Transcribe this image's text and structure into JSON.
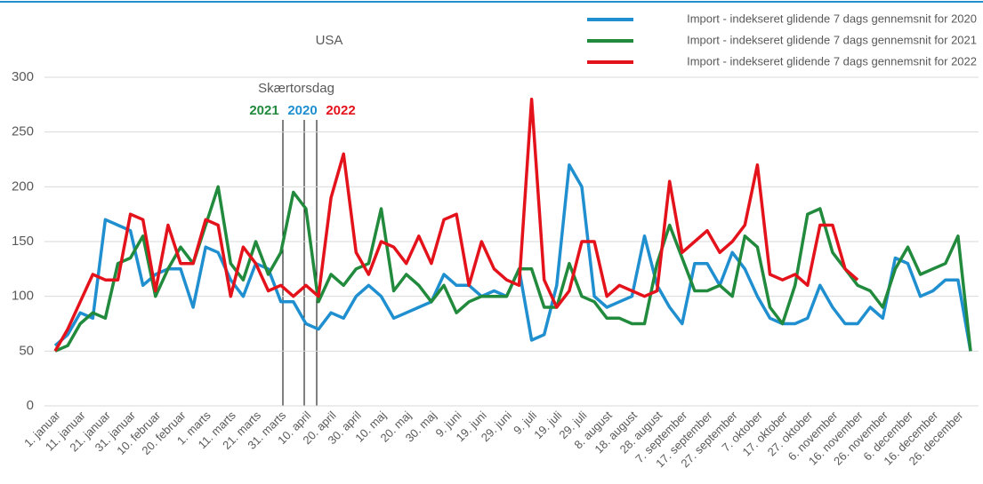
{
  "chart_data": {
    "type": "line",
    "title": "USA",
    "categories": [
      "1. januar",
      null,
      "11. januar",
      null,
      "21. januar",
      null,
      "31. januar",
      null,
      "10. februar",
      null,
      "20. februar",
      null,
      "1. marts",
      null,
      "11. marts",
      null,
      "21. marts",
      null,
      "31. marts",
      null,
      "10. april",
      null,
      "20. april",
      null,
      "30. april",
      null,
      "10. maj",
      null,
      "20. maj",
      null,
      "30. maj",
      null,
      "9. juni",
      null,
      "19. juni",
      null,
      "29. juni",
      null,
      "9. juli",
      null,
      "19. juli",
      null,
      "29. juli",
      null,
      "8. august",
      null,
      "18. august",
      null,
      "28. august",
      null,
      "7. september",
      null,
      "17. september",
      null,
      "27. september",
      null,
      "7. oktober",
      null,
      "17. oktober",
      null,
      "27. oktober",
      null,
      "6. november",
      null,
      "16. november",
      null,
      "26. november",
      null,
      "6. december",
      null,
      "16. december",
      null,
      "26. december",
      null
    ],
    "series": [
      {
        "name": "Import - indekseret glidende 7 dags gennemsnit for 2020",
        "color": "#1f8fd0",
        "values": [
          55,
          65,
          85,
          80,
          170,
          165,
          160,
          110,
          120,
          125,
          125,
          90,
          145,
          140,
          115,
          100,
          130,
          125,
          95,
          95,
          75,
          70,
          85,
          80,
          100,
          110,
          100,
          80,
          85,
          90,
          95,
          120,
          110,
          110,
          100,
          105,
          100,
          125,
          60,
          65,
          110,
          220,
          200,
          100,
          90,
          95,
          100,
          155,
          110,
          90,
          75,
          130,
          130,
          110,
          140,
          125,
          100,
          80,
          75,
          75,
          80,
          110,
          90,
          75,
          75,
          90,
          80,
          135,
          130,
          100,
          105,
          115,
          115,
          50
        ]
      },
      {
        "name": "Import - indekseret glidende 7 dags gennemsnit for 2021",
        "color": "#218a3c",
        "values": [
          50,
          55,
          75,
          85,
          80,
          130,
          135,
          155,
          100,
          125,
          145,
          130,
          165,
          200,
          130,
          115,
          150,
          120,
          140,
          195,
          180,
          95,
          120,
          110,
          125,
          130,
          180,
          105,
          120,
          110,
          95,
          110,
          85,
          95,
          100,
          100,
          100,
          125,
          125,
          90,
          90,
          130,
          100,
          95,
          80,
          80,
          75,
          75,
          130,
          165,
          135,
          105,
          105,
          110,
          100,
          155,
          145,
          90,
          75,
          110,
          175,
          180,
          140,
          125,
          110,
          105,
          90,
          125,
          145,
          120,
          125,
          130,
          155,
          50
        ]
      },
      {
        "name": "Import - indekseret glidende 7 dags gennemsnit for 2022",
        "color": "#e3121b",
        "values": [
          50,
          70,
          95,
          120,
          115,
          115,
          175,
          170,
          105,
          165,
          130,
          130,
          170,
          165,
          100,
          145,
          130,
          105,
          110,
          100,
          110,
          100,
          190,
          230,
          140,
          120,
          150,
          145,
          130,
          155,
          130,
          170,
          175,
          110,
          150,
          125,
          115,
          110,
          280,
          115,
          90,
          105,
          150,
          150,
          100,
          110,
          105,
          100,
          105,
          205,
          140,
          150,
          160,
          140,
          150,
          165,
          220,
          120,
          115,
          120,
          110,
          165,
          165,
          125,
          115,
          null,
          null,
          null,
          null,
          null,
          null,
          null,
          null,
          null
        ]
      }
    ],
    "annotation": {
      "title": "Skærtorsdag",
      "labels": [
        "2021",
        "2020",
        "2022"
      ]
    },
    "ylim": [
      0,
      300
    ],
    "yticks": [
      0,
      50,
      100,
      150,
      200,
      250,
      300
    ],
    "grid": true,
    "legend": "top-right"
  }
}
